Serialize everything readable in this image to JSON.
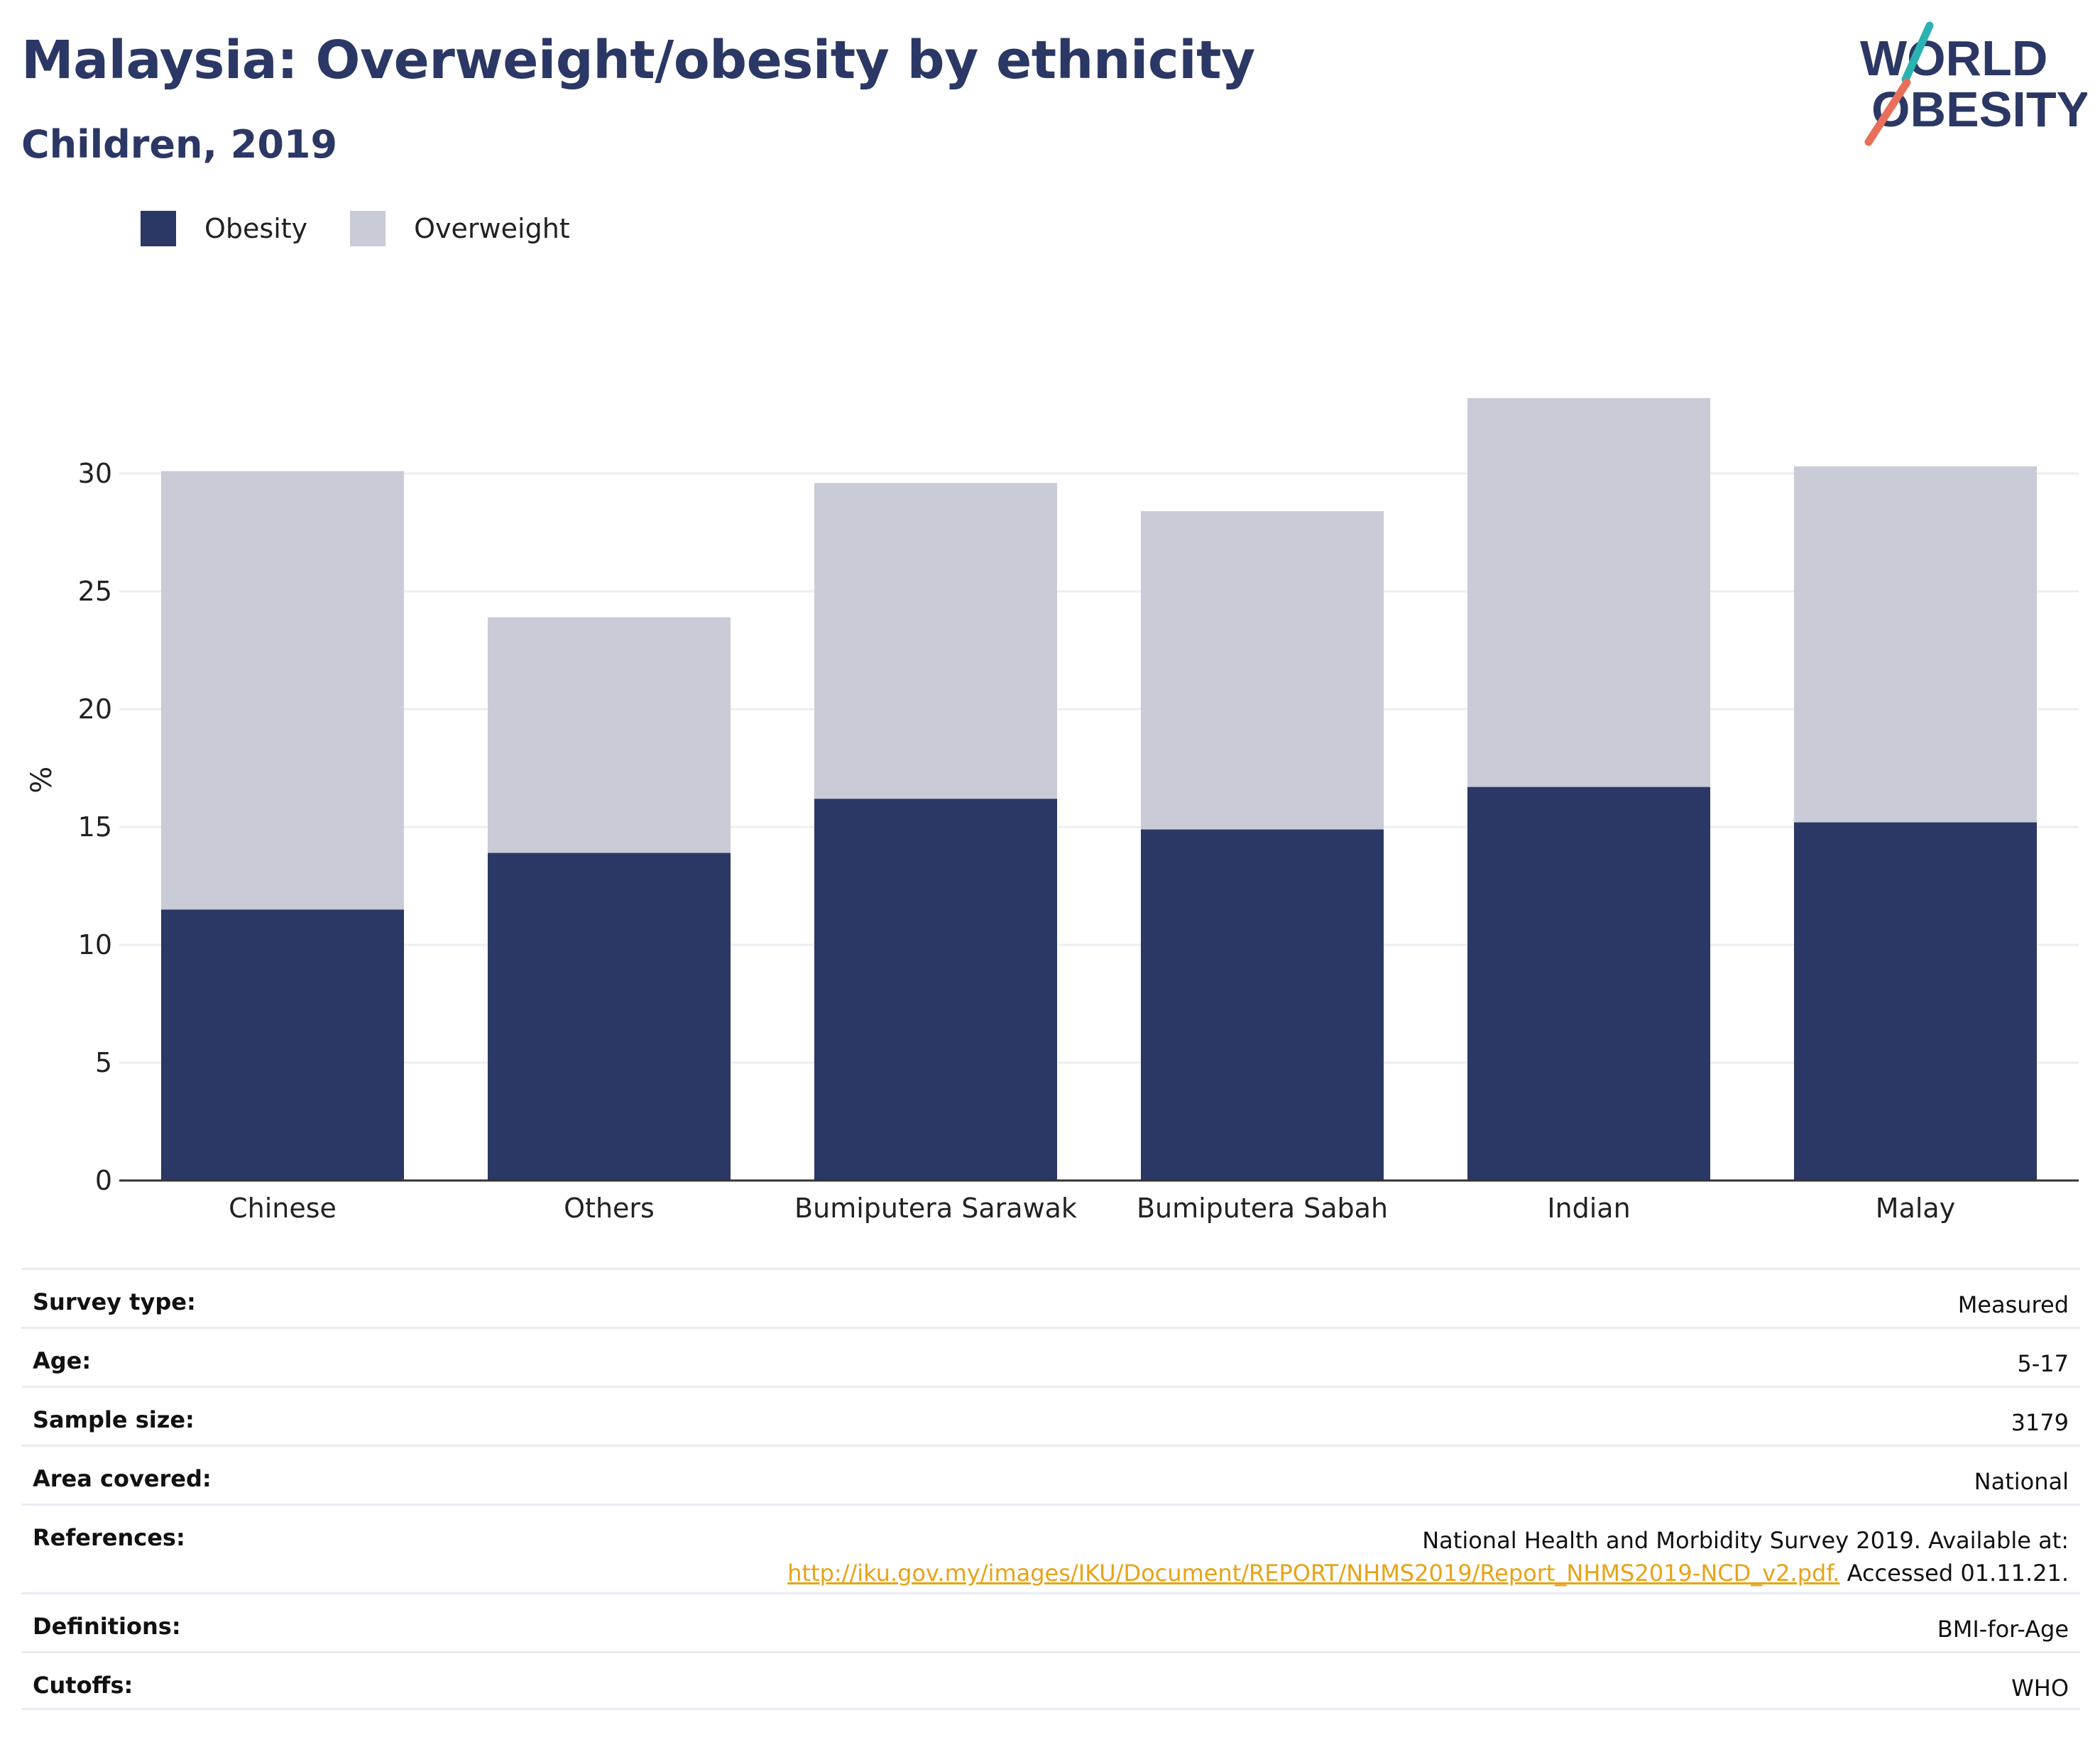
{
  "title": "Malaysia: Overweight/obesity by ethnicity",
  "subtitle": "Children, 2019",
  "logo": {
    "line1": "WORLD",
    "line2": "OBESITY",
    "accent_teal": "#2bb3b1",
    "accent_coral": "#e8705a"
  },
  "colors": {
    "obesity": "#2b3764",
    "overweight": "#c9cbd6",
    "gridline": "#eceef3",
    "axis": "#333333",
    "link": "#e8a317"
  },
  "legend": [
    {
      "label": "Obesity",
      "color": "#2b3764"
    },
    {
      "label": "Overweight",
      "color": "#c9cbd6"
    }
  ],
  "chart_data": {
    "type": "bar",
    "stacked": true,
    "categories": [
      "Chinese",
      "Others",
      "Bumiputera Sarawak",
      "Bumiputera Sabah",
      "Indian",
      "Malay"
    ],
    "series": [
      {
        "name": "Obesity",
        "values": [
          11.5,
          13.9,
          16.2,
          14.9,
          16.7,
          15.2
        ]
      },
      {
        "name": "Overweight",
        "values": [
          18.6,
          10.0,
          13.4,
          13.5,
          16.5,
          15.1
        ]
      }
    ],
    "ylabel": "%",
    "xlabel": "",
    "ylim": [
      0,
      35
    ],
    "yticks": [
      0,
      5,
      10,
      15,
      20,
      25,
      30
    ],
    "grid": true,
    "legend_position": "top-left"
  },
  "info": {
    "survey_type": {
      "label": "Survey type:",
      "value": "Measured"
    },
    "age": {
      "label": "Age:",
      "value": "5-17"
    },
    "sample_size": {
      "label": "Sample size:",
      "value": "3179"
    },
    "area_covered": {
      "label": "Area covered:",
      "value": "National"
    },
    "references": {
      "label": "References:",
      "text": "National Health and Morbidity Survey 2019. Available at:",
      "link": "http://iku.gov.my/images/IKU/Document/REPORT/NHMS2019/Report_NHMS2019-NCD_v2.pdf.",
      "accessed": " Accessed 01.11.21."
    },
    "definitions": {
      "label": "Definitions:",
      "value": "BMI-for-Age"
    },
    "cutoffs": {
      "label": "Cutoffs:",
      "value": "WHO"
    }
  }
}
